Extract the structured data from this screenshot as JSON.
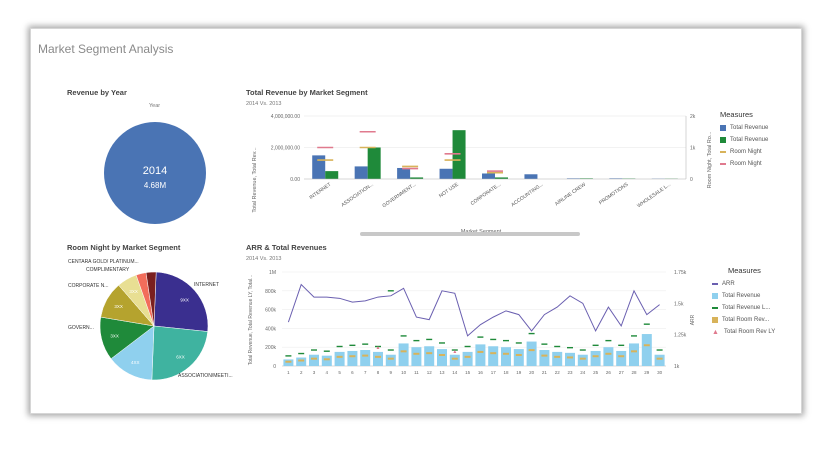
{
  "app": {
    "title": "Market Segment Analysis"
  },
  "revenue_by_year": {
    "title": "Revenue by Year",
    "legend_title": "Year",
    "slice": {
      "year": "2014",
      "value": "4.68M"
    }
  },
  "total_revenue": {
    "title": "Total Revenue by Market Segment",
    "subtitle": "2014 Vs. 2013",
    "ylabel": "Total Revenue, Total Rev...",
    "y2label": "Room Night, Total Ro...",
    "xlabel": "Market Segment",
    "y_ticks": [
      "4,000,000.00",
      "2,000,000.00",
      "0.00"
    ],
    "y2_ticks": [
      "2k",
      "1k",
      "0"
    ],
    "legend": {
      "title": "Measures",
      "items": [
        "Total Revenue",
        "Total Revenue",
        "Room Night",
        "Room Night"
      ]
    }
  },
  "room_night": {
    "title": "Room Night by Market Segment",
    "outer_labels": [
      "CENTARA GOLD/ PLATINUM...",
      "COMPLIMENTARY",
      "CORPORATE N...",
      "GOVERN...",
      "INTERNET",
      "ASSOCIATION/MEETI..."
    ],
    "slice_labels": [
      "9XX",
      "6XX",
      "4XX",
      "3XX",
      "3XX",
      "3XX"
    ]
  },
  "arr": {
    "title": "ARR & Total Revenues",
    "subtitle": "2014 Vs. 2013",
    "ylabel": "Total Revenue, Total Revenue LY, Total...",
    "y2label": "ARR",
    "y_ticks": [
      "1M",
      "800k",
      "600k",
      "400k",
      "200k",
      "0"
    ],
    "y2_ticks": [
      "1.75k",
      "1.5k",
      "1.25k",
      "1k"
    ],
    "legend": {
      "title": "Measures",
      "items": [
        "ARR",
        "Total Revenue",
        "Total Revenue L...",
        "Total Room Rev...",
        "Total Room Rev LY"
      ]
    }
  },
  "colors": {
    "blue": "#4a74b4",
    "green": "#1f8a3a",
    "light_blue": "#8fd0ee",
    "line": "#6a5fb0",
    "pink": "#e07a8e",
    "gold": "#d8b35a"
  },
  "chart_data": [
    {
      "type": "pie",
      "title": "Revenue by Year",
      "legend_title": "Year",
      "categories": [
        "2014"
      ],
      "values": [
        4.68
      ],
      "unit": "M"
    },
    {
      "type": "bar",
      "title": "Total Revenue by Market Segment",
      "subtitle": "2014 Vs. 2013",
      "xlabel": "Market Segment",
      "ylabel": "Total Revenue, Total Rev...",
      "categories": [
        "INTERNET",
        "ASSOCIATION...",
        "GOVERNMENT...",
        "NOT USE",
        "CORPORATE...",
        "ACCOUNTING...",
        "AIRLINE CREW",
        "PROMOTIONS",
        "WHOLESALE L..."
      ],
      "ylim": [
        0,
        4000000
      ],
      "y2lim": [
        0,
        2000
      ],
      "series": [
        {
          "name": "Total Revenue",
          "values": [
            1500000,
            800000,
            700000,
            650000,
            350000,
            300000,
            40000,
            40000,
            20000
          ]
        },
        {
          "name": "Total Revenue",
          "values": [
            500000,
            2000000,
            100000,
            3100000,
            100000,
            0,
            40000,
            30000,
            20000
          ]
        },
        {
          "name": "Room Night",
          "axis": "y2",
          "values": [
            600,
            1000,
            400,
            600,
            200,
            0,
            0,
            0,
            0
          ]
        },
        {
          "name": "Room Night",
          "axis": "y2",
          "values": [
            1000,
            1500,
            330,
            800,
            250,
            0,
            0,
            0,
            0
          ]
        }
      ]
    },
    {
      "type": "pie",
      "title": "Room Night by Market Segment",
      "categories": [
        "INTERNET",
        "ASSOCIATION/MEETI...",
        "GOVERN...",
        "",
        "CORPORATE N...",
        "",
        "COMPLIMENTARY",
        "CENTARA GOLD/ PLATINUM..."
      ],
      "values": [
        26,
        24,
        14,
        13,
        11,
        6,
        3,
        3
      ],
      "labels": [
        "9XX",
        "6XX",
        "4XX",
        "3XX",
        "3XX",
        "3XX",
        "",
        ""
      ]
    },
    {
      "type": "bar",
      "title": "ARR & Total Revenues",
      "subtitle": "2014 Vs. 2013",
      "ylabel": "Total Revenue, Total Revenue LY, Total...",
      "y2label": "ARR",
      "categories": [
        "1",
        "2",
        "3",
        "4",
        "5",
        "6",
        "7",
        "8",
        "9",
        "10",
        "11",
        "12",
        "13",
        "14",
        "15",
        "16",
        "17",
        "18",
        "19",
        "20",
        "21",
        "22",
        "23",
        "24",
        "25",
        "26",
        "27",
        "28",
        "29",
        "30"
      ],
      "ylim": [
        0,
        1000000
      ],
      "y2lim": [
        1000,
        1750
      ],
      "series": [
        {
          "name": "Total Revenue",
          "values": [
            70000,
            90000,
            120000,
            110000,
            150000,
            160000,
            170000,
            150000,
            120000,
            240000,
            200000,
            210000,
            180000,
            120000,
            150000,
            230000,
            210000,
            200000,
            180000,
            260000,
            170000,
            150000,
            140000,
            120000,
            160000,
            200000,
            160000,
            240000,
            340000,
            120000
          ]
        },
        {
          "name": "ARR",
          "axis": "y2",
          "values": [
            1350,
            1650,
            1550,
            1550,
            1540,
            1510,
            1520,
            1550,
            1560,
            1620,
            1390,
            1370,
            1600,
            1580,
            1240,
            1330,
            1390,
            1440,
            1410,
            1280,
            1410,
            1470,
            1560,
            1500,
            1280,
            1470,
            1320,
            1600,
            1410,
            1490
          ]
        },
        {
          "name": "Total Revenue L...",
          "values": [
            0,
            0,
            0,
            0,
            0,
            0,
            0,
            0,
            800000,
            0,
            0,
            0,
            0,
            0,
            0,
            0,
            0,
            0,
            0,
            0,
            0,
            0,
            0,
            0,
            0,
            0,
            0,
            0,
            0,
            0
          ]
        },
        {
          "name": "Total Room Rev LY",
          "values": [
            0,
            0,
            0,
            0,
            0,
            0,
            0,
            180000,
            0,
            0,
            0,
            0,
            0,
            140000,
            0,
            0,
            0,
            0,
            0,
            0,
            0,
            0,
            0,
            0,
            0,
            0,
            0,
            0,
            0,
            0
          ]
        }
      ]
    }
  ]
}
